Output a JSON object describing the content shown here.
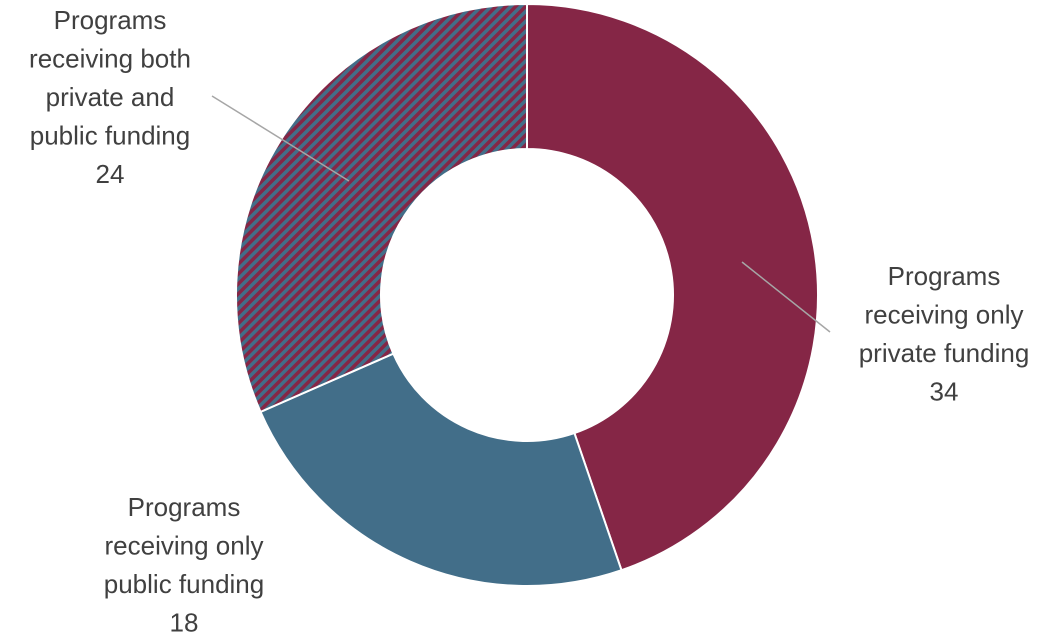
{
  "chart_data": {
    "type": "pie",
    "variant": "donut",
    "title": "",
    "slices": [
      {
        "name": "Programs receiving only private funding",
        "value": 34,
        "color": "#852646",
        "pattern": "solid",
        "label_lines": [
          "Programs",
          "receiving only",
          "private funding",
          "34"
        ]
      },
      {
        "name": "Programs receiving only public funding",
        "value": 18,
        "color": "#426E89",
        "pattern": "solid",
        "label_lines": [
          "Programs",
          "receiving only",
          "public funding",
          "18"
        ]
      },
      {
        "name": "Programs receiving both private and public funding",
        "value": 24,
        "color": "#852646",
        "pattern_color": "#426E89",
        "pattern": "diagonal-stripes",
        "label_lines": [
          "Programs",
          "receiving both",
          "private and",
          "public funding",
          "24"
        ]
      }
    ],
    "legend": "none",
    "start_angle": "12 o'clock",
    "direction": "clockwise",
    "leader_color": "#A6A6A6"
  }
}
